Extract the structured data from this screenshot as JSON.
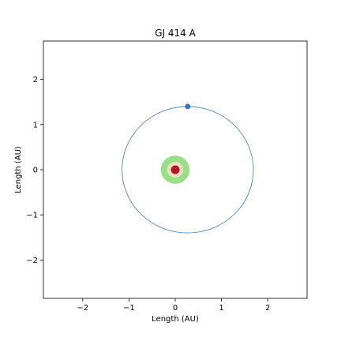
{
  "chart_data": {
    "type": "scatter",
    "title": "GJ 414 A",
    "xlabel": "Length (AU)",
    "ylabel": "Length (AU)",
    "xlim": [
      -2.85,
      2.85
    ],
    "ylim": [
      -2.85,
      2.85
    ],
    "xticks": [
      -2,
      -1,
      0,
      1,
      2
    ],
    "yticks": [
      -2,
      -1,
      0,
      1,
      2
    ],
    "xtick_labels": [
      "−2",
      "−1",
      "0",
      "1",
      "2"
    ],
    "ytick_labels": [
      "−2",
      "−1",
      "0",
      "1",
      "2"
    ],
    "grid": false,
    "star": {
      "x": 0,
      "y": 0,
      "color": "#b2182b"
    },
    "zones": [
      {
        "r_inner": 0.17,
        "r_outer": 0.31,
        "color": "#98e088"
      },
      {
        "r_inner": 0.06,
        "r_outer": 0.17,
        "color": "#f6ddc0"
      }
    ],
    "orbit": {
      "center_x": 0.27,
      "center_y": 0.0,
      "rx": 1.42,
      "ry": 1.4,
      "color": "#3a7ab4"
    },
    "planet": {
      "x": 0.27,
      "y": 1.4,
      "color": "#3a7ab4"
    }
  }
}
